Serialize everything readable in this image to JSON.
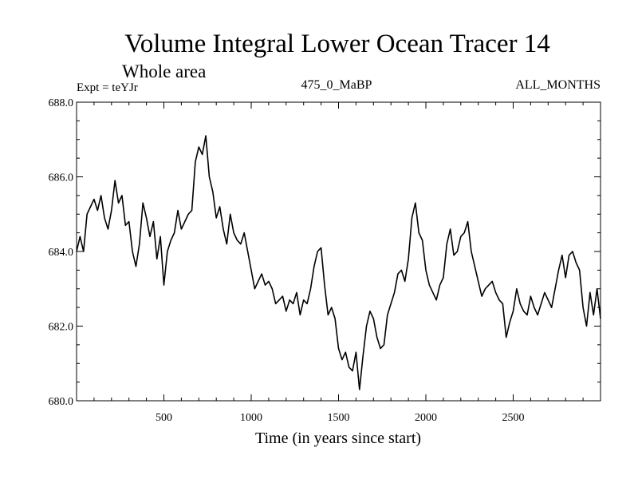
{
  "chart_data": {
    "type": "line",
    "title": "Volume Integral Lower Ocean Tracer 14",
    "subtitle": "Whole area",
    "expt_label": "Expt = teYJr",
    "run_label": "475_0_MaBP",
    "months_label": "ALL_MONTHS",
    "xlabel": "Time (in years since start)",
    "ylabel": "",
    "xlim": [
      0,
      3000
    ],
    "ylim": [
      680.0,
      688.0
    ],
    "x_ticks": [
      500,
      1000,
      1500,
      2000,
      2500
    ],
    "x_tick_labels": [
      "500",
      "1000",
      "1500",
      "2000",
      "2500"
    ],
    "y_ticks": [
      680.0,
      682.0,
      684.0,
      686.0,
      688.0
    ],
    "y_tick_labels": [
      "680.0",
      "682.0",
      "684.0",
      "686.0",
      "688.0"
    ],
    "x_minor_step": 100,
    "y_minor_step": 0.5,
    "grid": false,
    "legend": "none",
    "series": [
      {
        "name": "Volume Integral Lower Ocean Tracer 14",
        "color": "#000000",
        "x": [
          0,
          20,
          40,
          60,
          80,
          100,
          120,
          140,
          160,
          180,
          200,
          220,
          240,
          260,
          280,
          300,
          320,
          340,
          360,
          380,
          400,
          420,
          440,
          460,
          480,
          500,
          520,
          540,
          560,
          580,
          600,
          620,
          640,
          660,
          680,
          700,
          720,
          740,
          760,
          780,
          800,
          820,
          840,
          860,
          880,
          900,
          920,
          940,
          960,
          980,
          1000,
          1020,
          1040,
          1060,
          1080,
          1100,
          1120,
          1140,
          1160,
          1180,
          1200,
          1220,
          1240,
          1260,
          1280,
          1300,
          1320,
          1340,
          1360,
          1380,
          1400,
          1420,
          1440,
          1460,
          1480,
          1500,
          1520,
          1540,
          1560,
          1580,
          1600,
          1620,
          1640,
          1660,
          1680,
          1700,
          1720,
          1740,
          1760,
          1780,
          1800,
          1820,
          1840,
          1860,
          1880,
          1900,
          1920,
          1940,
          1960,
          1980,
          2000,
          2020,
          2040,
          2060,
          2080,
          2100,
          2120,
          2140,
          2160,
          2180,
          2200,
          2220,
          2240,
          2260,
          2280,
          2300,
          2320,
          2340,
          2360,
          2380,
          2400,
          2420,
          2440,
          2460,
          2480,
          2500,
          2520,
          2540,
          2560,
          2580,
          2600,
          2620,
          2640,
          2660,
          2680,
          2700,
          2720,
          2740,
          2760,
          2780,
          2800,
          2820,
          2840,
          2860,
          2880,
          2900,
          2920,
          2940,
          2960,
          2980,
          3000
        ],
        "values": [
          684.0,
          684.4,
          684.0,
          685.0,
          685.2,
          685.4,
          685.1,
          685.5,
          684.9,
          684.6,
          685.1,
          685.9,
          685.3,
          685.5,
          684.7,
          684.8,
          684.0,
          683.6,
          684.2,
          685.3,
          684.9,
          684.4,
          684.8,
          683.8,
          684.4,
          683.1,
          684.0,
          684.3,
          684.5,
          685.1,
          684.6,
          684.8,
          685.0,
          685.1,
          686.4,
          686.8,
          686.6,
          687.1,
          686.0,
          685.6,
          684.9,
          685.2,
          684.6,
          684.2,
          685.0,
          684.5,
          684.3,
          684.2,
          684.5,
          684.0,
          683.5,
          683.0,
          683.2,
          683.4,
          683.1,
          683.2,
          683.0,
          682.6,
          682.7,
          682.8,
          682.4,
          682.7,
          682.6,
          682.9,
          682.3,
          682.7,
          682.6,
          683.0,
          683.6,
          684.0,
          684.1,
          683.1,
          682.3,
          682.5,
          682.2,
          681.4,
          681.1,
          681.3,
          680.9,
          680.8,
          681.3,
          680.3,
          681.2,
          682.0,
          682.4,
          682.2,
          681.7,
          681.4,
          681.5,
          682.3,
          682.6,
          682.9,
          683.4,
          683.5,
          683.2,
          683.8,
          684.9,
          685.3,
          684.5,
          684.3,
          683.5,
          683.1,
          682.9,
          682.7,
          683.1,
          683.3,
          684.2,
          684.6,
          683.9,
          684.0,
          684.4,
          684.5,
          684.8,
          684.0,
          683.6,
          683.2,
          682.8,
          683.0,
          683.1,
          683.2,
          682.9,
          682.7,
          682.6,
          681.7,
          682.1,
          682.4,
          683.0,
          682.6,
          682.4,
          682.3,
          682.8,
          682.5,
          682.3,
          682.6,
          682.9,
          682.7,
          682.5,
          683.0,
          683.5,
          683.9,
          683.3,
          683.9,
          684.0,
          683.7,
          683.5,
          682.5,
          682.0,
          682.9,
          682.3,
          683.0,
          682.2
        ]
      }
    ]
  }
}
